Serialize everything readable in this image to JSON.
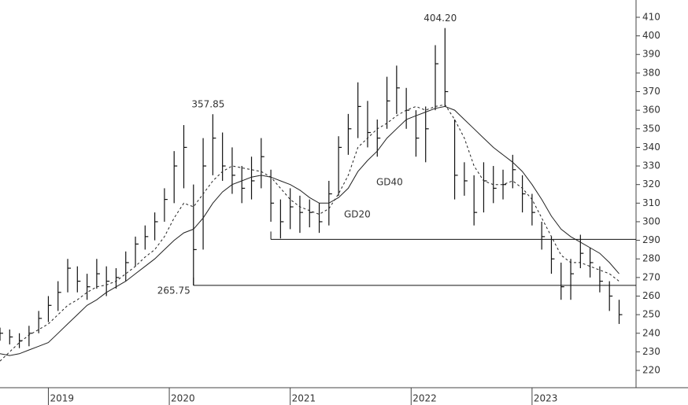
{
  "chart_data": {
    "type": "hlc",
    "x": [
      2018.6,
      2018.68,
      2018.76,
      2018.84,
      2018.92,
      2019.0,
      2019.08,
      2019.16,
      2019.24,
      2019.32,
      2019.4,
      2019.48,
      2019.56,
      2019.64,
      2019.72,
      2019.8,
      2019.88,
      2019.96,
      2020.04,
      2020.12,
      2020.2,
      2020.28,
      2020.36,
      2020.44,
      2020.52,
      2020.6,
      2020.68,
      2020.76,
      2020.84,
      2020.92,
      2021.0,
      2021.08,
      2021.16,
      2021.24,
      2021.32,
      2021.4,
      2021.48,
      2021.56,
      2021.64,
      2021.72,
      2021.8,
      2021.88,
      2021.96,
      2022.04,
      2022.12,
      2022.2,
      2022.28,
      2022.36,
      2022.44,
      2022.52,
      2022.6,
      2022.68,
      2022.76,
      2022.84,
      2022.92,
      2023.0,
      2023.08,
      2023.16,
      2023.24,
      2023.32,
      2023.4,
      2023.48,
      2023.56,
      2023.64,
      2023.72
    ],
    "high": [
      243,
      242,
      240,
      244,
      252,
      260,
      268,
      280,
      276,
      272,
      280,
      276,
      275,
      284,
      292,
      298,
      305,
      318,
      338,
      352,
      320,
      345,
      357.85,
      348,
      340,
      330,
      335,
      345,
      328,
      312,
      318,
      314,
      312,
      310,
      322,
      346,
      358,
      375,
      365,
      355,
      378,
      384,
      372,
      360,
      362,
      395,
      404.2,
      355,
      332,
      325,
      332,
      330,
      328,
      336,
      325,
      315,
      300,
      292,
      278,
      280,
      293,
      286,
      276,
      268,
      258
    ],
    "low": [
      236,
      234,
      232,
      233,
      240,
      246,
      252,
      262,
      262,
      258,
      264,
      260,
      264,
      268,
      276,
      285,
      290,
      300,
      310,
      318,
      265.75,
      285,
      325,
      322,
      315,
      310,
      312,
      318,
      300,
      291,
      296,
      294,
      297,
      294,
      298,
      314,
      336,
      345,
      340,
      335,
      350,
      358,
      350,
      335,
      332,
      360,
      362,
      312,
      314,
      298,
      305,
      310,
      312,
      318,
      305,
      298,
      285,
      272,
      258,
      258,
      275,
      270,
      262,
      252,
      245
    ],
    "close": [
      240,
      238,
      236,
      240,
      248,
      255,
      262,
      275,
      268,
      265,
      272,
      268,
      270,
      278,
      288,
      292,
      300,
      312,
      330,
      340,
      285,
      330,
      345,
      330,
      325,
      318,
      322,
      335,
      310,
      300,
      308,
      305,
      305,
      300,
      315,
      340,
      350,
      362,
      348,
      345,
      365,
      372,
      360,
      345,
      350,
      385,
      370,
      325,
      322,
      305,
      322,
      318,
      320,
      328,
      315,
      305,
      292,
      280,
      265,
      272,
      283,
      278,
      268,
      260,
      250
    ],
    "series": [
      {
        "name": "GD20",
        "color": "#222222",
        "dash": true,
        "values": [
          225,
          230,
          235,
          239,
          242,
          245,
          250,
          255,
          258,
          262,
          265,
          266,
          268,
          272,
          276,
          281,
          285,
          292,
          302,
          310,
          308,
          315,
          322,
          327,
          330,
          329,
          328,
          327,
          324,
          318,
          312,
          308,
          306,
          304,
          307,
          315,
          325,
          340,
          345,
          350,
          353,
          357,
          360,
          362,
          360,
          362,
          363,
          355,
          345,
          330,
          322,
          320,
          320,
          322,
          318,
          312,
          302,
          292,
          282,
          278,
          278,
          276,
          274,
          272,
          268
        ]
      },
      {
        "name": "GD40",
        "color": "#222222",
        "dash": false,
        "values": [
          229,
          228,
          229,
          231,
          233,
          235,
          240,
          245,
          250,
          255,
          258,
          262,
          265,
          268,
          272,
          276,
          280,
          285,
          290,
          294,
          296,
          302,
          310,
          316,
          320,
          322,
          324,
          325,
          324,
          322,
          320,
          317,
          313,
          310,
          310,
          313,
          318,
          327,
          333,
          338,
          345,
          350,
          355,
          357,
          359,
          361,
          362,
          360,
          355,
          350,
          345,
          340,
          336,
          332,
          327,
          320,
          312,
          303,
          296,
          292,
          289,
          286,
          283,
          278,
          272
        ]
      }
    ],
    "levels": [
      {
        "value": 290.5,
        "start": 2020.84
      },
      {
        "value": 265.75,
        "start": 2020.2
      }
    ],
    "annotations": [
      {
        "text": "357.85",
        "x": 2020.36,
        "y": 357.85
      },
      {
        "text": "404.20",
        "x": 2022.28,
        "y": 404.2
      },
      {
        "text": "265.75",
        "x": 2020.2,
        "y": 265.75
      }
    ],
    "xlim": [
      2018.6,
      2023.86
    ],
    "xticks": [
      2019,
      2020,
      2021,
      2022,
      2023
    ],
    "ylim": [
      210.7,
      419.3
    ],
    "yticks": [
      220,
      230,
      240,
      250,
      260,
      270,
      280,
      290,
      300,
      310,
      320,
      330,
      340,
      350,
      360,
      370,
      380,
      390,
      400,
      410
    ]
  }
}
